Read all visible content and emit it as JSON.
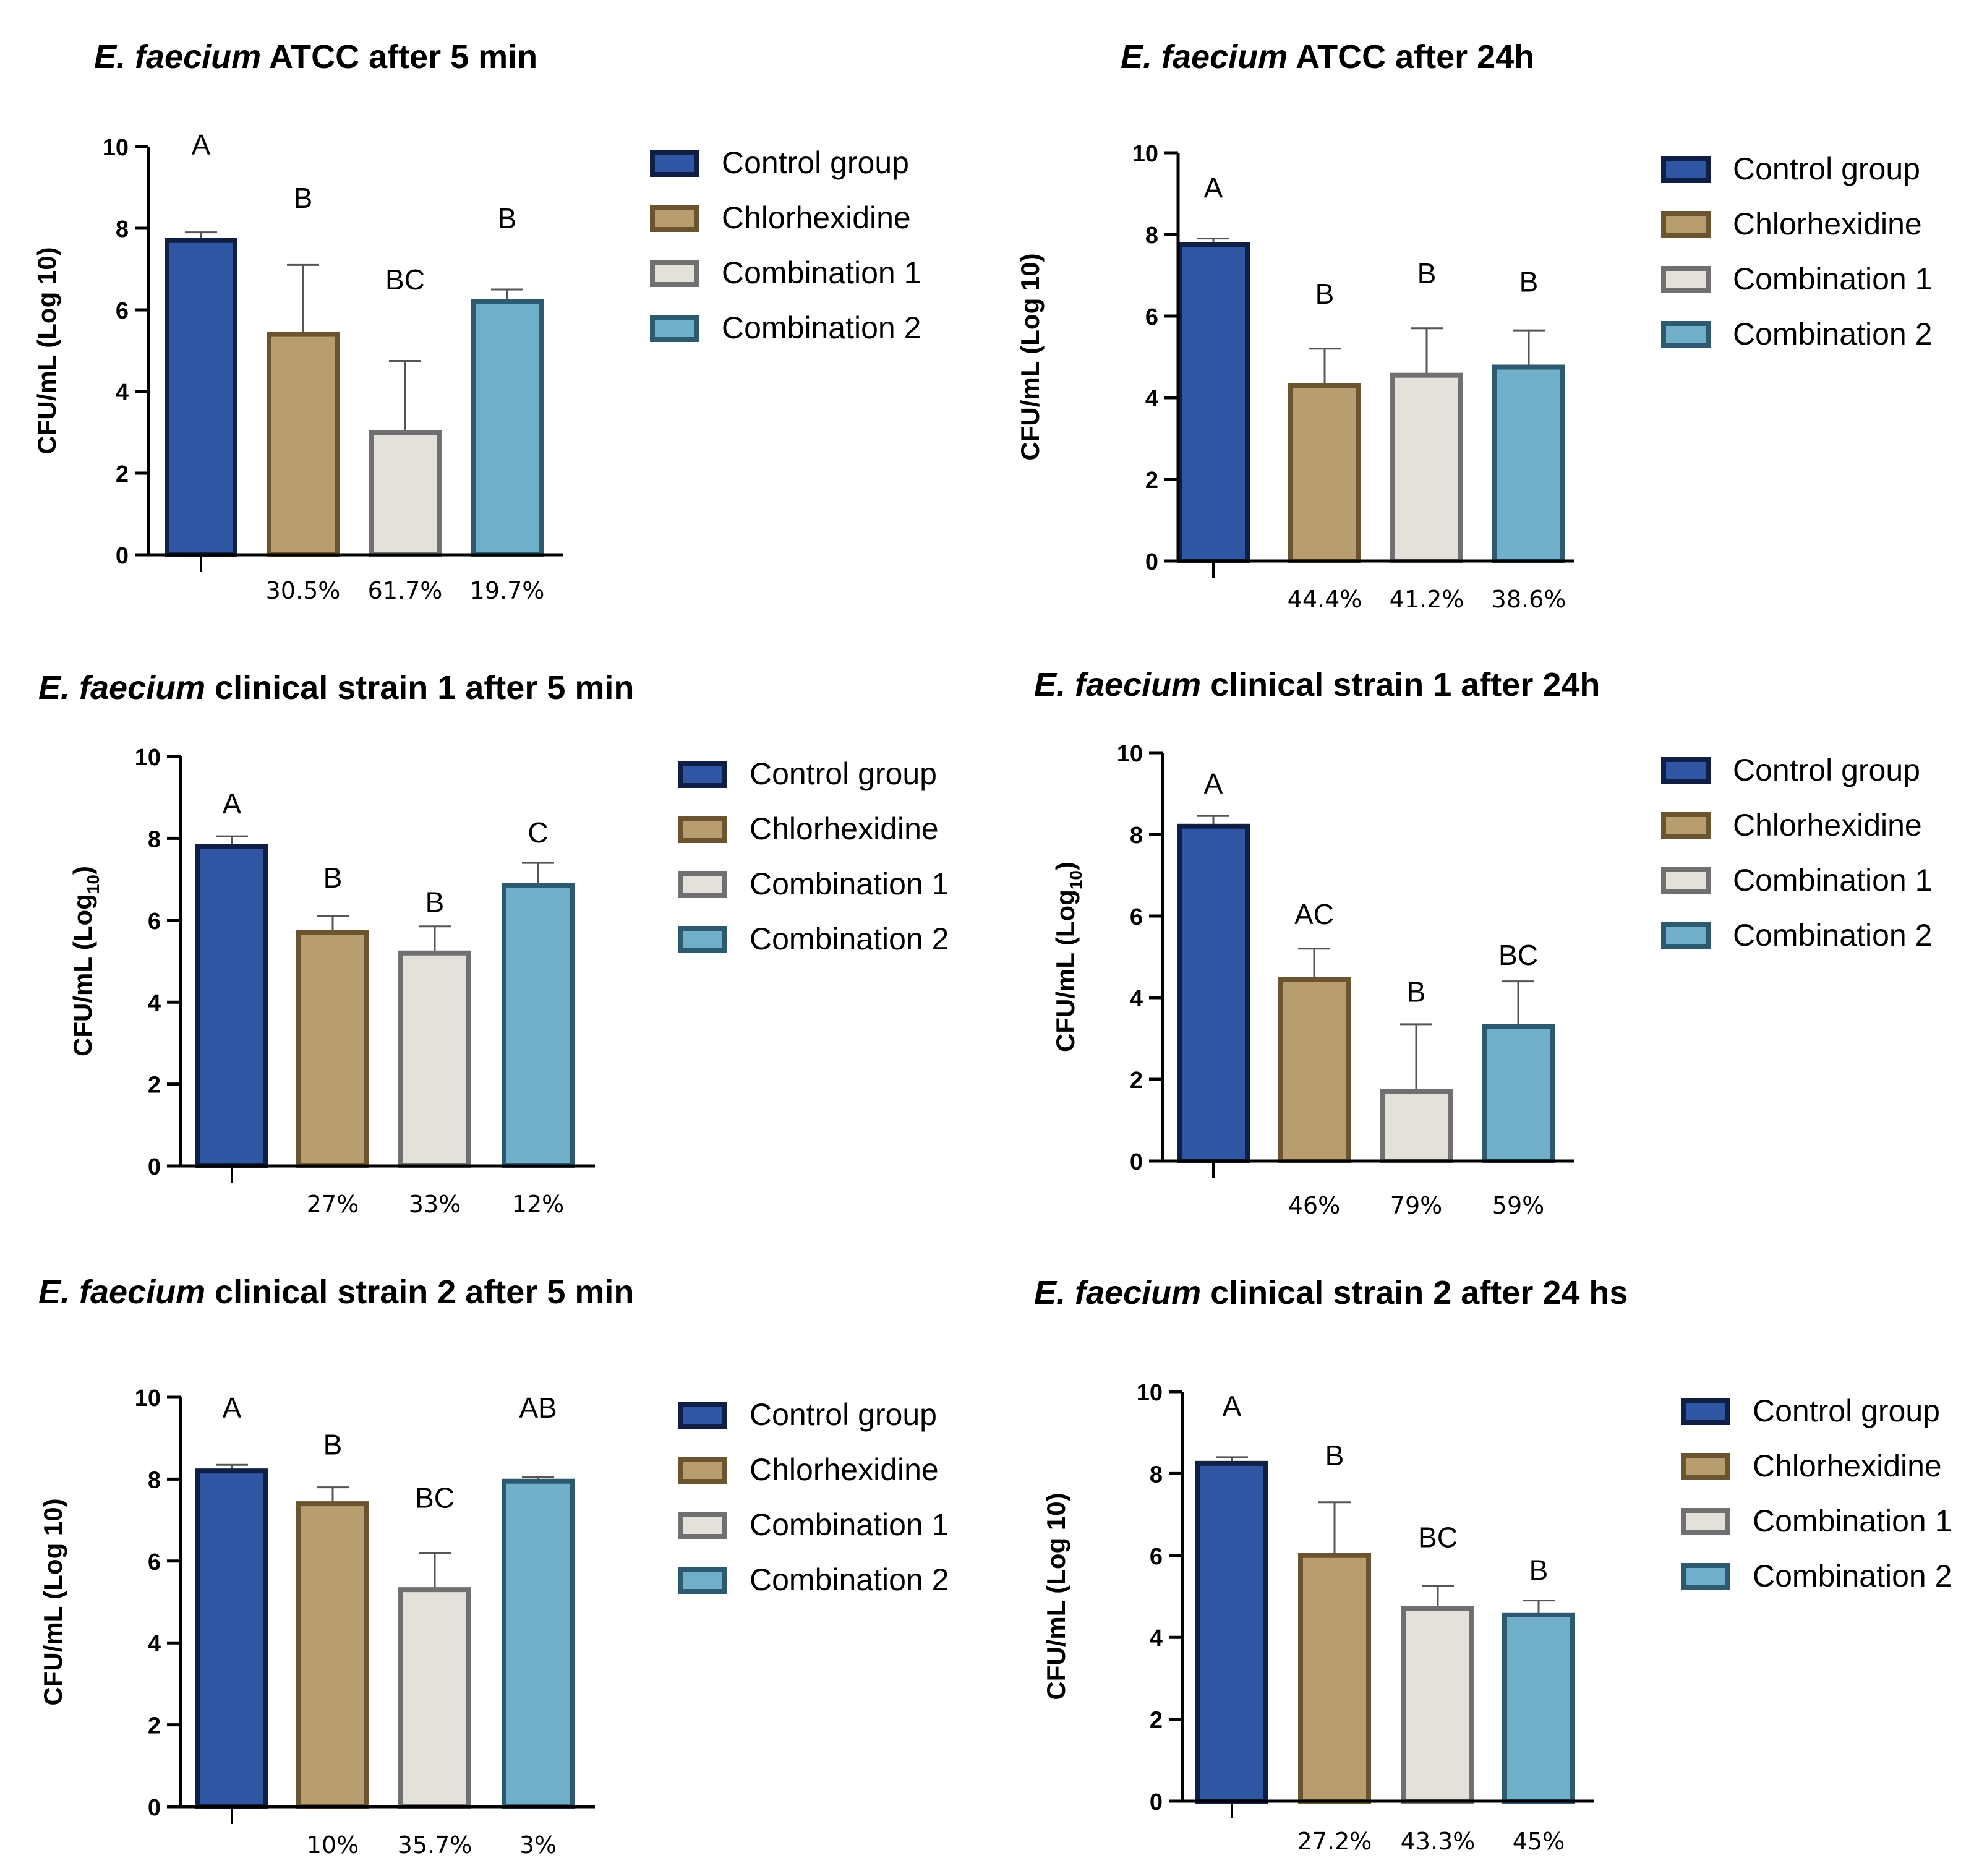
{
  "groups": [
    "Control group",
    "Chlorhexidine",
    "Combination 1",
    "Combination 2"
  ],
  "colors": {
    "fills": [
      "#2f56a3",
      "#b89d6f",
      "#e4e1da",
      "#70afc9"
    ],
    "strokes": [
      "#0f1f45",
      "#6b5430",
      "#707070",
      "#2d5a6e"
    ],
    "axis": "#000000",
    "error_bar": "#555555"
  },
  "chart_data": [
    {
      "type": "bar",
      "title_italic": "E. faecium",
      "title_rest": " ATCC after 5 min",
      "ylabel": "CFU/mL (Log 10)",
      "ylim": [
        0,
        10
      ],
      "yticks": [
        "0",
        "2",
        "4",
        "6",
        "8",
        "10"
      ],
      "categories": [
        "Control group",
        "Chlorhexidine",
        "Combination 1",
        "Combination 2"
      ],
      "values": [
        7.7,
        5.4,
        3.0,
        6.2
      ],
      "errors": [
        0.2,
        1.7,
        1.75,
        0.3
      ],
      "letters": [
        "A",
        "B",
        "BC",
        "B"
      ],
      "letter_y": [
        9.8,
        8.5,
        6.5,
        8.0
      ],
      "percents": [
        "",
        "30.5%",
        "61.7%",
        "19.7%"
      ]
    },
    {
      "type": "bar",
      "title_italic": "E. faecium",
      "title_rest": " ATCC after 24h",
      "ylabel": "CFU/mL (Log 10)",
      "ylim": [
        0,
        10
      ],
      "yticks": [
        "0",
        "2",
        "4",
        "6",
        "8",
        "10"
      ],
      "categories": [
        "Control group",
        "Chlorhexidine",
        "Combination 1",
        "Combination 2"
      ],
      "values": [
        7.75,
        4.3,
        4.55,
        4.75
      ],
      "errors": [
        0.15,
        0.9,
        1.15,
        0.9
      ],
      "letters": [
        "A",
        "B",
        "B",
        "B"
      ],
      "letter_y": [
        8.9,
        6.3,
        6.8,
        6.6
      ],
      "percents": [
        "",
        "44.4%",
        "41.2%",
        "38.6%"
      ]
    },
    {
      "type": "bar",
      "title_italic": "E. faecium",
      "title_rest": " clinical strain 1 after 5 min",
      "ylabel": "CFU/mL (Log",
      "ylabel_sub": "10",
      "ylabel_end": ")",
      "ylim": [
        0,
        10
      ],
      "yticks": [
        "0",
        "2",
        "4",
        "6",
        "8",
        "10"
      ],
      "categories": [
        "Control group",
        "Chlorhexidine",
        "Combination 1",
        "Combination 2"
      ],
      "values": [
        7.8,
        5.7,
        5.2,
        6.85
      ],
      "errors": [
        0.25,
        0.4,
        0.65,
        0.55
      ],
      "letters": [
        "A",
        "B",
        "B",
        "C"
      ],
      "letter_y": [
        8.6,
        6.8,
        6.2,
        7.9
      ],
      "percents": [
        "",
        "27%",
        "33%",
        "12%"
      ]
    },
    {
      "type": "bar",
      "title_italic": "E. faecium",
      "title_rest": " clinical strain 1 after 24h",
      "ylabel": "CFU/mL (Log",
      "ylabel_sub": "10",
      "ylabel_end": ")",
      "ylim": [
        0,
        10
      ],
      "yticks": [
        "0",
        "2",
        "4",
        "6",
        "8",
        "10"
      ],
      "categories": [
        "Control group",
        "Chlorhexidine",
        "Combination 1",
        "Combination 2"
      ],
      "values": [
        8.2,
        4.45,
        1.7,
        3.3
      ],
      "errors": [
        0.25,
        0.75,
        1.65,
        1.1
      ],
      "letters": [
        "A",
        "AC",
        "B",
        "BC"
      ],
      "letter_y": [
        9.0,
        5.8,
        3.9,
        4.8
      ],
      "percents": [
        "",
        "46%",
        "79%",
        "59%"
      ]
    },
    {
      "type": "bar",
      "title_italic": "E. faecium",
      "title_rest": " clinical strain 2 after 5 min",
      "ylabel": "CFU/mL (Log 10)",
      "ylim": [
        0,
        10
      ],
      "yticks": [
        "0",
        "2",
        "4",
        "6",
        "8",
        "10"
      ],
      "categories": [
        "Control group",
        "Chlorhexidine",
        "Combination 1",
        "Combination 2"
      ],
      "values": [
        8.2,
        7.4,
        5.3,
        7.95
      ],
      "errors": [
        0.15,
        0.4,
        0.9,
        0.1
      ],
      "letters": [
        "A",
        "B",
        "BC",
        "AB"
      ],
      "letter_y": [
        9.5,
        8.6,
        7.3,
        9.5
      ],
      "percents": [
        "",
        "10%",
        "35.7%",
        "3%"
      ]
    },
    {
      "type": "bar",
      "title_italic": "E. faecium",
      "title_rest": " clinical strain 2 after  24 hs",
      "ylabel": "CFU/mL (Log 10)",
      "ylim": [
        0,
        10
      ],
      "yticks": [
        "0",
        "2",
        "4",
        "6",
        "8",
        "10"
      ],
      "categories": [
        "Control group",
        "Chlorhexidine",
        "Combination 1",
        "Combination 2"
      ],
      "values": [
        8.25,
        6.0,
        4.7,
        4.55
      ],
      "errors": [
        0.15,
        1.3,
        0.55,
        0.35
      ],
      "letters": [
        "A",
        "B",
        "BC",
        "B"
      ],
      "letter_y": [
        9.4,
        8.2,
        6.2,
        5.4
      ],
      "percents": [
        "",
        "27.2%",
        "43.3%",
        "45%"
      ]
    }
  ]
}
